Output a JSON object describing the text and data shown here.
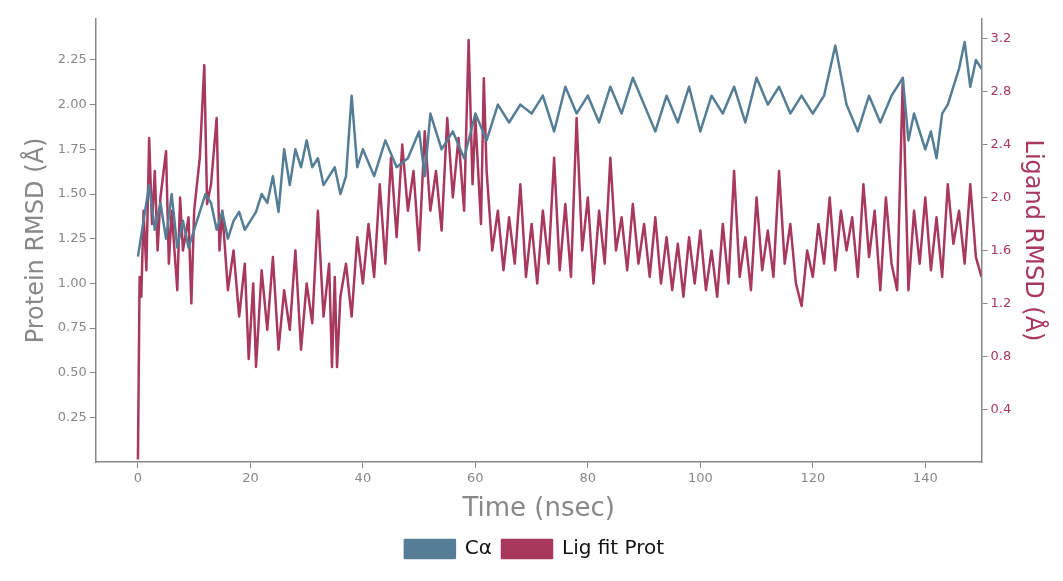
{
  "chart_data": {
    "type": "line",
    "xlabel": "Time (nsec)",
    "ylabel": "Protein RMSD (Å)",
    "y2label": "Ligand RMSD (Å)",
    "xlim": [
      -7.5,
      150
    ],
    "xticks": [
      0,
      20,
      40,
      60,
      80,
      100,
      120,
      140
    ],
    "ylim": [
      0,
      2.48
    ],
    "yticks": [
      0.25,
      {
        "value": 0.5,
        "label": "0.50"
      },
      0.75,
      {
        "value": 1,
        "label": "1.00"
      },
      1.25,
      {
        "value": 1.5,
        "label": "1.50"
      },
      1.75,
      {
        "value": 2,
        "label": "2.00"
      },
      2.25
    ],
    "y2lim": [
      0,
      3.35
    ],
    "y2ticks": [
      0.4,
      0.8,
      1.2,
      1.6,
      {
        "value": 2,
        "label": "2.0"
      },
      2.4,
      2.8,
      3.2
    ],
    "legend": "bottom",
    "grid": false,
    "marker": "none",
    "line_style": "solid",
    "series": [
      {
        "name": "Cα",
        "color": "#557e96",
        "x": [
          0,
          1,
          2,
          3,
          4,
          5,
          6,
          7,
          8,
          9,
          10,
          11,
          12,
          13,
          14,
          15,
          16,
          17,
          18,
          19,
          20,
          21,
          22,
          23,
          24,
          25,
          26,
          27,
          28,
          29,
          30,
          31,
          32,
          33,
          34,
          35,
          36,
          37,
          38,
          39,
          40,
          42,
          44,
          46,
          48,
          50,
          51,
          52,
          54,
          56,
          58,
          60,
          62,
          64,
          66,
          68,
          70,
          72,
          74,
          76,
          78,
          80,
          82,
          84,
          86,
          88,
          90,
          92,
          94,
          96,
          98,
          100,
          102,
          104,
          106,
          108,
          110,
          112,
          114,
          116,
          118,
          120,
          122,
          124,
          126,
          128,
          130,
          132,
          134,
          136,
          137,
          138,
          140,
          141,
          142,
          143,
          144,
          145,
          146,
          147,
          148,
          149,
          150
        ],
        "values": [
          1.15,
          1.35,
          1.55,
          1.3,
          1.45,
          1.25,
          1.5,
          1.2,
          1.35,
          1.2,
          1.3,
          1.4,
          1.5,
          1.45,
          1.3,
          1.4,
          1.25,
          1.35,
          1.4,
          1.3,
          1.35,
          1.4,
          1.5,
          1.45,
          1.6,
          1.4,
          1.75,
          1.55,
          1.75,
          1.65,
          1.8,
          1.65,
          1.7,
          1.55,
          1.6,
          1.65,
          1.5,
          1.6,
          2.05,
          1.65,
          1.75,
          1.6,
          1.8,
          1.65,
          1.7,
          1.85,
          1.6,
          1.95,
          1.75,
          1.85,
          1.7,
          1.95,
          1.8,
          2.0,
          1.9,
          2.0,
          1.95,
          2.05,
          1.85,
          2.1,
          1.95,
          2.05,
          1.9,
          2.1,
          1.95,
          2.15,
          2.0,
          1.85,
          2.05,
          1.9,
          2.1,
          1.85,
          2.05,
          1.95,
          2.1,
          1.9,
          2.15,
          2.0,
          2.1,
          1.95,
          2.05,
          1.95,
          2.05,
          2.33,
          2.0,
          1.85,
          2.05,
          1.9,
          2.05,
          2.15,
          1.8,
          1.95,
          1.75,
          1.85,
          1.7,
          1.95,
          2.0,
          2.1,
          2.2,
          2.35,
          2.1,
          2.25,
          2.2
        ]
      },
      {
        "name": "Lig fit Prot",
        "color": "#a8385c",
        "axis": "y2",
        "x": [
          0,
          0.3,
          0.6,
          1,
          1.5,
          2,
          2.5,
          3,
          3.5,
          4,
          5,
          5.5,
          6,
          7,
          7.5,
          8,
          9,
          9.5,
          10,
          11,
          11.8,
          12.3,
          13,
          14,
          14.5,
          15,
          16,
          17,
          18,
          19,
          19.7,
          20.5,
          21,
          22,
          23,
          24,
          25,
          26,
          27,
          28,
          29,
          30,
          31,
          32,
          33,
          34,
          34.5,
          35,
          35.4,
          36,
          37,
          38,
          39,
          40,
          41,
          42,
          43,
          44,
          45,
          46,
          47,
          48,
          49,
          50,
          51,
          52,
          53,
          54,
          55,
          56,
          57,
          58,
          58.8,
          59.5,
          60,
          61,
          61.5,
          62,
          63,
          64,
          65,
          66,
          67,
          68,
          69,
          70,
          71,
          72,
          73,
          74,
          75,
          76,
          77,
          78,
          79,
          80,
          81,
          82,
          83,
          84,
          85,
          86,
          87,
          88,
          89,
          90,
          91,
          92,
          93,
          94,
          95,
          96,
          97,
          98,
          99,
          100,
          101,
          102,
          103,
          104,
          105,
          106,
          107,
          108,
          109,
          110,
          111,
          112,
          113,
          114,
          115,
          116,
          117,
          118,
          119,
          120,
          121,
          122,
          123,
          124,
          125,
          126,
          127,
          128,
          129,
          130,
          131,
          132,
          133,
          134,
          135,
          136,
          137,
          138,
          139,
          140,
          141,
          142,
          143,
          144,
          145,
          146,
          147,
          148,
          149,
          150
        ],
        "values": [
          0.02,
          1.4,
          1.25,
          1.9,
          1.45,
          2.45,
          1.8,
          2.2,
          1.6,
          2.0,
          2.35,
          1.5,
          1.9,
          1.3,
          2.0,
          1.6,
          1.85,
          1.2,
          1.9,
          2.3,
          3.0,
          1.95,
          2.1,
          2.6,
          1.6,
          1.9,
          1.3,
          1.6,
          1.1,
          1.5,
          0.78,
          1.35,
          0.72,
          1.45,
          1.0,
          1.55,
          0.85,
          1.3,
          1.0,
          1.6,
          0.85,
          1.35,
          1.05,
          1.9,
          1.1,
          1.5,
          0.72,
          1.4,
          0.72,
          1.25,
          1.5,
          1.1,
          1.7,
          1.35,
          1.8,
          1.4,
          2.1,
          1.5,
          2.3,
          1.7,
          2.4,
          1.9,
          2.2,
          1.6,
          2.5,
          1.9,
          2.2,
          1.75,
          2.6,
          2.0,
          2.45,
          1.9,
          3.19,
          2.1,
          2.6,
          1.8,
          2.9,
          2.2,
          1.6,
          1.9,
          1.45,
          1.85,
          1.5,
          2.1,
          1.4,
          1.8,
          1.35,
          1.9,
          1.5,
          2.3,
          1.45,
          1.95,
          1.4,
          2.6,
          1.6,
          2.0,
          1.35,
          1.9,
          1.5,
          2.3,
          1.6,
          1.85,
          1.45,
          1.95,
          1.5,
          1.8,
          1.4,
          1.85,
          1.35,
          1.7,
          1.3,
          1.65,
          1.25,
          1.7,
          1.35,
          1.75,
          1.3,
          1.6,
          1.25,
          1.8,
          1.35,
          2.2,
          1.4,
          1.7,
          1.3,
          2.0,
          1.45,
          1.75,
          1.4,
          2.2,
          1.5,
          1.8,
          1.35,
          1.18,
          1.6,
          1.4,
          1.8,
          1.5,
          2.0,
          1.45,
          1.9,
          1.6,
          1.85,
          1.4,
          2.1,
          1.55,
          1.9,
          1.3,
          2.0,
          1.5,
          1.3,
          2.9,
          1.3,
          1.9,
          1.5,
          2.0,
          1.45,
          1.85,
          1.4,
          2.1,
          1.65,
          1.9,
          1.5,
          2.1,
          1.55,
          1.4
        ]
      }
    ]
  }
}
